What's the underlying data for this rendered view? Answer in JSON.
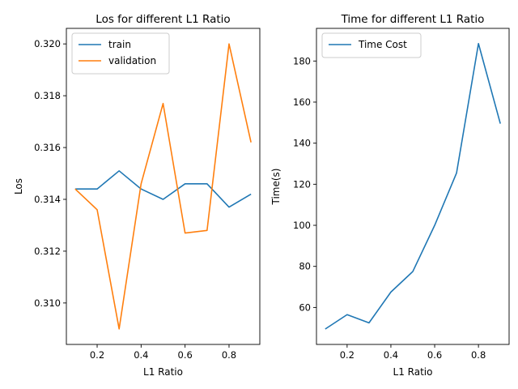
{
  "chart_data": [
    {
      "type": "line",
      "title": "Los for different L1 Ratio",
      "xlabel": "L1 Ratio",
      "ylabel": "Los",
      "x": [
        0.1,
        0.2,
        0.3,
        0.4,
        0.5,
        0.6,
        0.7,
        0.8,
        0.9
      ],
      "xlim": [
        0.06,
        0.94
      ],
      "ylim": [
        0.3084,
        0.3206
      ],
      "xticks": [
        0.2,
        0.4,
        0.6,
        0.8
      ],
      "xtick_labels": [
        "0.2",
        "0.4",
        "0.6",
        "0.8"
      ],
      "yticks": [
        0.31,
        0.312,
        0.314,
        0.316,
        0.318,
        0.32
      ],
      "ytick_labels": [
        "0.310",
        "0.312",
        "0.314",
        "0.316",
        "0.318",
        "0.320"
      ],
      "legend": "top-left",
      "grid": false,
      "series": [
        {
          "name": "train",
          "color": "#1f77b4",
          "values": [
            0.3144,
            0.3144,
            0.3151,
            0.3144,
            0.314,
            0.3146,
            0.3146,
            0.3137,
            0.3142
          ]
        },
        {
          "name": "validation",
          "color": "#ff7f0e",
          "values": [
            0.3144,
            0.3136,
            0.309,
            0.3146,
            0.3177,
            0.3127,
            0.3128,
            0.32,
            0.3162
          ]
        }
      ]
    },
    {
      "type": "line",
      "title": "Time for different L1 Ratio",
      "xlabel": "L1 Ratio",
      "ylabel": "Time(s)",
      "x": [
        0.1,
        0.2,
        0.3,
        0.4,
        0.5,
        0.6,
        0.7,
        0.8,
        0.9
      ],
      "xlim": [
        0.06,
        0.94
      ],
      "ylim": [
        42.0,
        195.9
      ],
      "xticks": [
        0.2,
        0.4,
        0.6,
        0.8
      ],
      "xtick_labels": [
        "0.2",
        "0.4",
        "0.6",
        "0.8"
      ],
      "yticks": [
        60,
        80,
        100,
        120,
        140,
        160,
        180
      ],
      "ytick_labels": [
        "60",
        "80",
        "100",
        "120",
        "140",
        "160",
        "180"
      ],
      "legend": "top-left",
      "grid": false,
      "series": [
        {
          "name": "Time Cost",
          "color": "#1f77b4",
          "values": [
            49.5,
            56.5,
            52.5,
            67.5,
            77.5,
            100.0,
            125.5,
            188.5,
            149.5
          ]
        }
      ]
    }
  ]
}
